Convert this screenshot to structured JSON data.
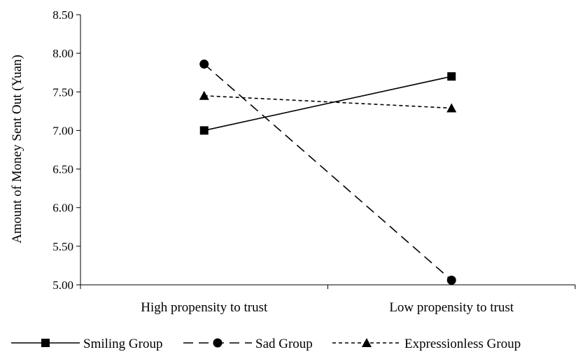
{
  "chart_data": {
    "type": "line",
    "categories": [
      "High propensity to trust",
      "Low propensity to trust"
    ],
    "series": [
      {
        "name": "Smiling Group",
        "values": [
          7.0,
          7.7
        ],
        "marker": "square",
        "dash": "solid"
      },
      {
        "name": "Sad Group",
        "values": [
          7.86,
          5.06
        ],
        "marker": "circle",
        "dash": "long-dash"
      },
      {
        "name": "Expressionless Group",
        "values": [
          7.45,
          7.29
        ],
        "marker": "triangle",
        "dash": "short-dash"
      }
    ],
    "ylabel": "Amount of Money Sent Out (Yuan)",
    "xlabel": "",
    "ylim": [
      5.0,
      8.5
    ],
    "yticks": [
      "5.00",
      "5.50",
      "6.00",
      "6.50",
      "7.00",
      "7.50",
      "8.00",
      "8.50"
    ],
    "grid": false,
    "legend_position": "bottom",
    "colors": {
      "line": "#000000",
      "background": "#ffffff"
    }
  }
}
